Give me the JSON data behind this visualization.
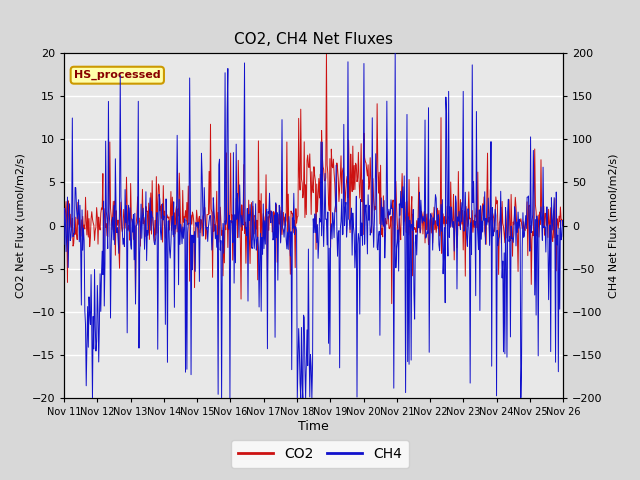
{
  "title": "CO2, CH4 Net Fluxes",
  "xlabel": "Time",
  "ylabel_left": "CO2 Net Flux (umol/m2/s)",
  "ylabel_right": "CH4 Net Flux (nmol/m2/s)",
  "ylim_left": [
    -20,
    20
  ],
  "ylim_right": [
    -200,
    200
  ],
  "yticks_left": [
    -20,
    -15,
    -10,
    -5,
    0,
    5,
    10,
    15,
    20
  ],
  "yticks_right": [
    -200,
    -150,
    -100,
    -50,
    0,
    50,
    100,
    150,
    200
  ],
  "xtick_labels": [
    "Nov 11",
    "Nov 12",
    "Nov 13",
    "Nov 14",
    "Nov 15",
    "Nov 16",
    "Nov 17",
    "Nov 18",
    "Nov 19",
    "Nov 20",
    "Nov 21",
    "Nov 22",
    "Nov 23",
    "Nov 24",
    "Nov 25",
    "Nov 26"
  ],
  "co2_color": "#cc1111",
  "ch4_color": "#1111cc",
  "legend_label_co2": "CO2",
  "legend_label_ch4": "CH4",
  "annotation_text": "HS_processed",
  "annotation_bg": "#ffffaa",
  "annotation_border": "#cc9900",
  "annotation_text_color": "#880000",
  "fig_bg_color": "#d8d8d8",
  "plot_bg_color": "#e8e8e8",
  "grid_color": "#ffffff",
  "figsize": [
    6.4,
    4.8
  ],
  "dpi": 100,
  "seed": 42,
  "n_days": 15,
  "n_per_day": 48
}
